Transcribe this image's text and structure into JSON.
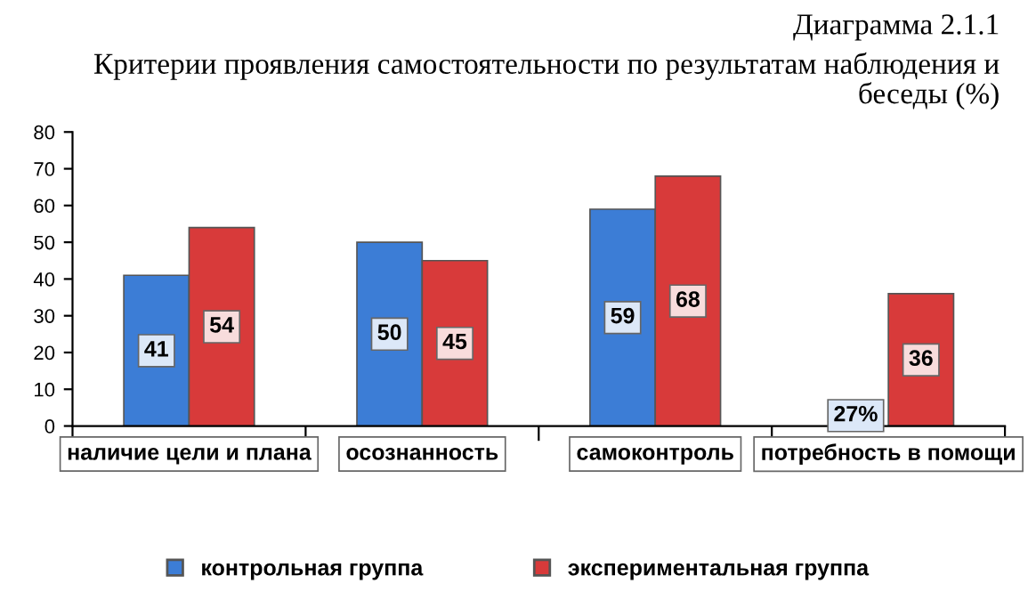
{
  "chart_data": {
    "type": "bar",
    "title": "Диаграмма 2.1.1",
    "subtitle": "Критерии проявления самостоятельности по результатам наблюдения и беседы (%)",
    "categories": [
      "наличие цели и плана",
      "осознанность",
      "самоконтроль",
      "потребность в помощи"
    ],
    "series": [
      {
        "name": "контрольная группа",
        "color": "#3c7dd6",
        "values": [
          41,
          50,
          59,
          null
        ],
        "value_labels": [
          "41",
          "50",
          "59",
          "27%"
        ]
      },
      {
        "name": "экспериментальная группа",
        "color": "#d83a3a",
        "values": [
          54,
          45,
          68,
          36
        ],
        "value_labels": [
          "54",
          "45",
          "68",
          "36"
        ]
      }
    ],
    "ylim": [
      0,
      80
    ],
    "yticks": [
      0,
      10,
      20,
      30,
      40,
      50,
      60,
      70,
      80
    ],
    "grid": false,
    "legend": "bottom"
  }
}
